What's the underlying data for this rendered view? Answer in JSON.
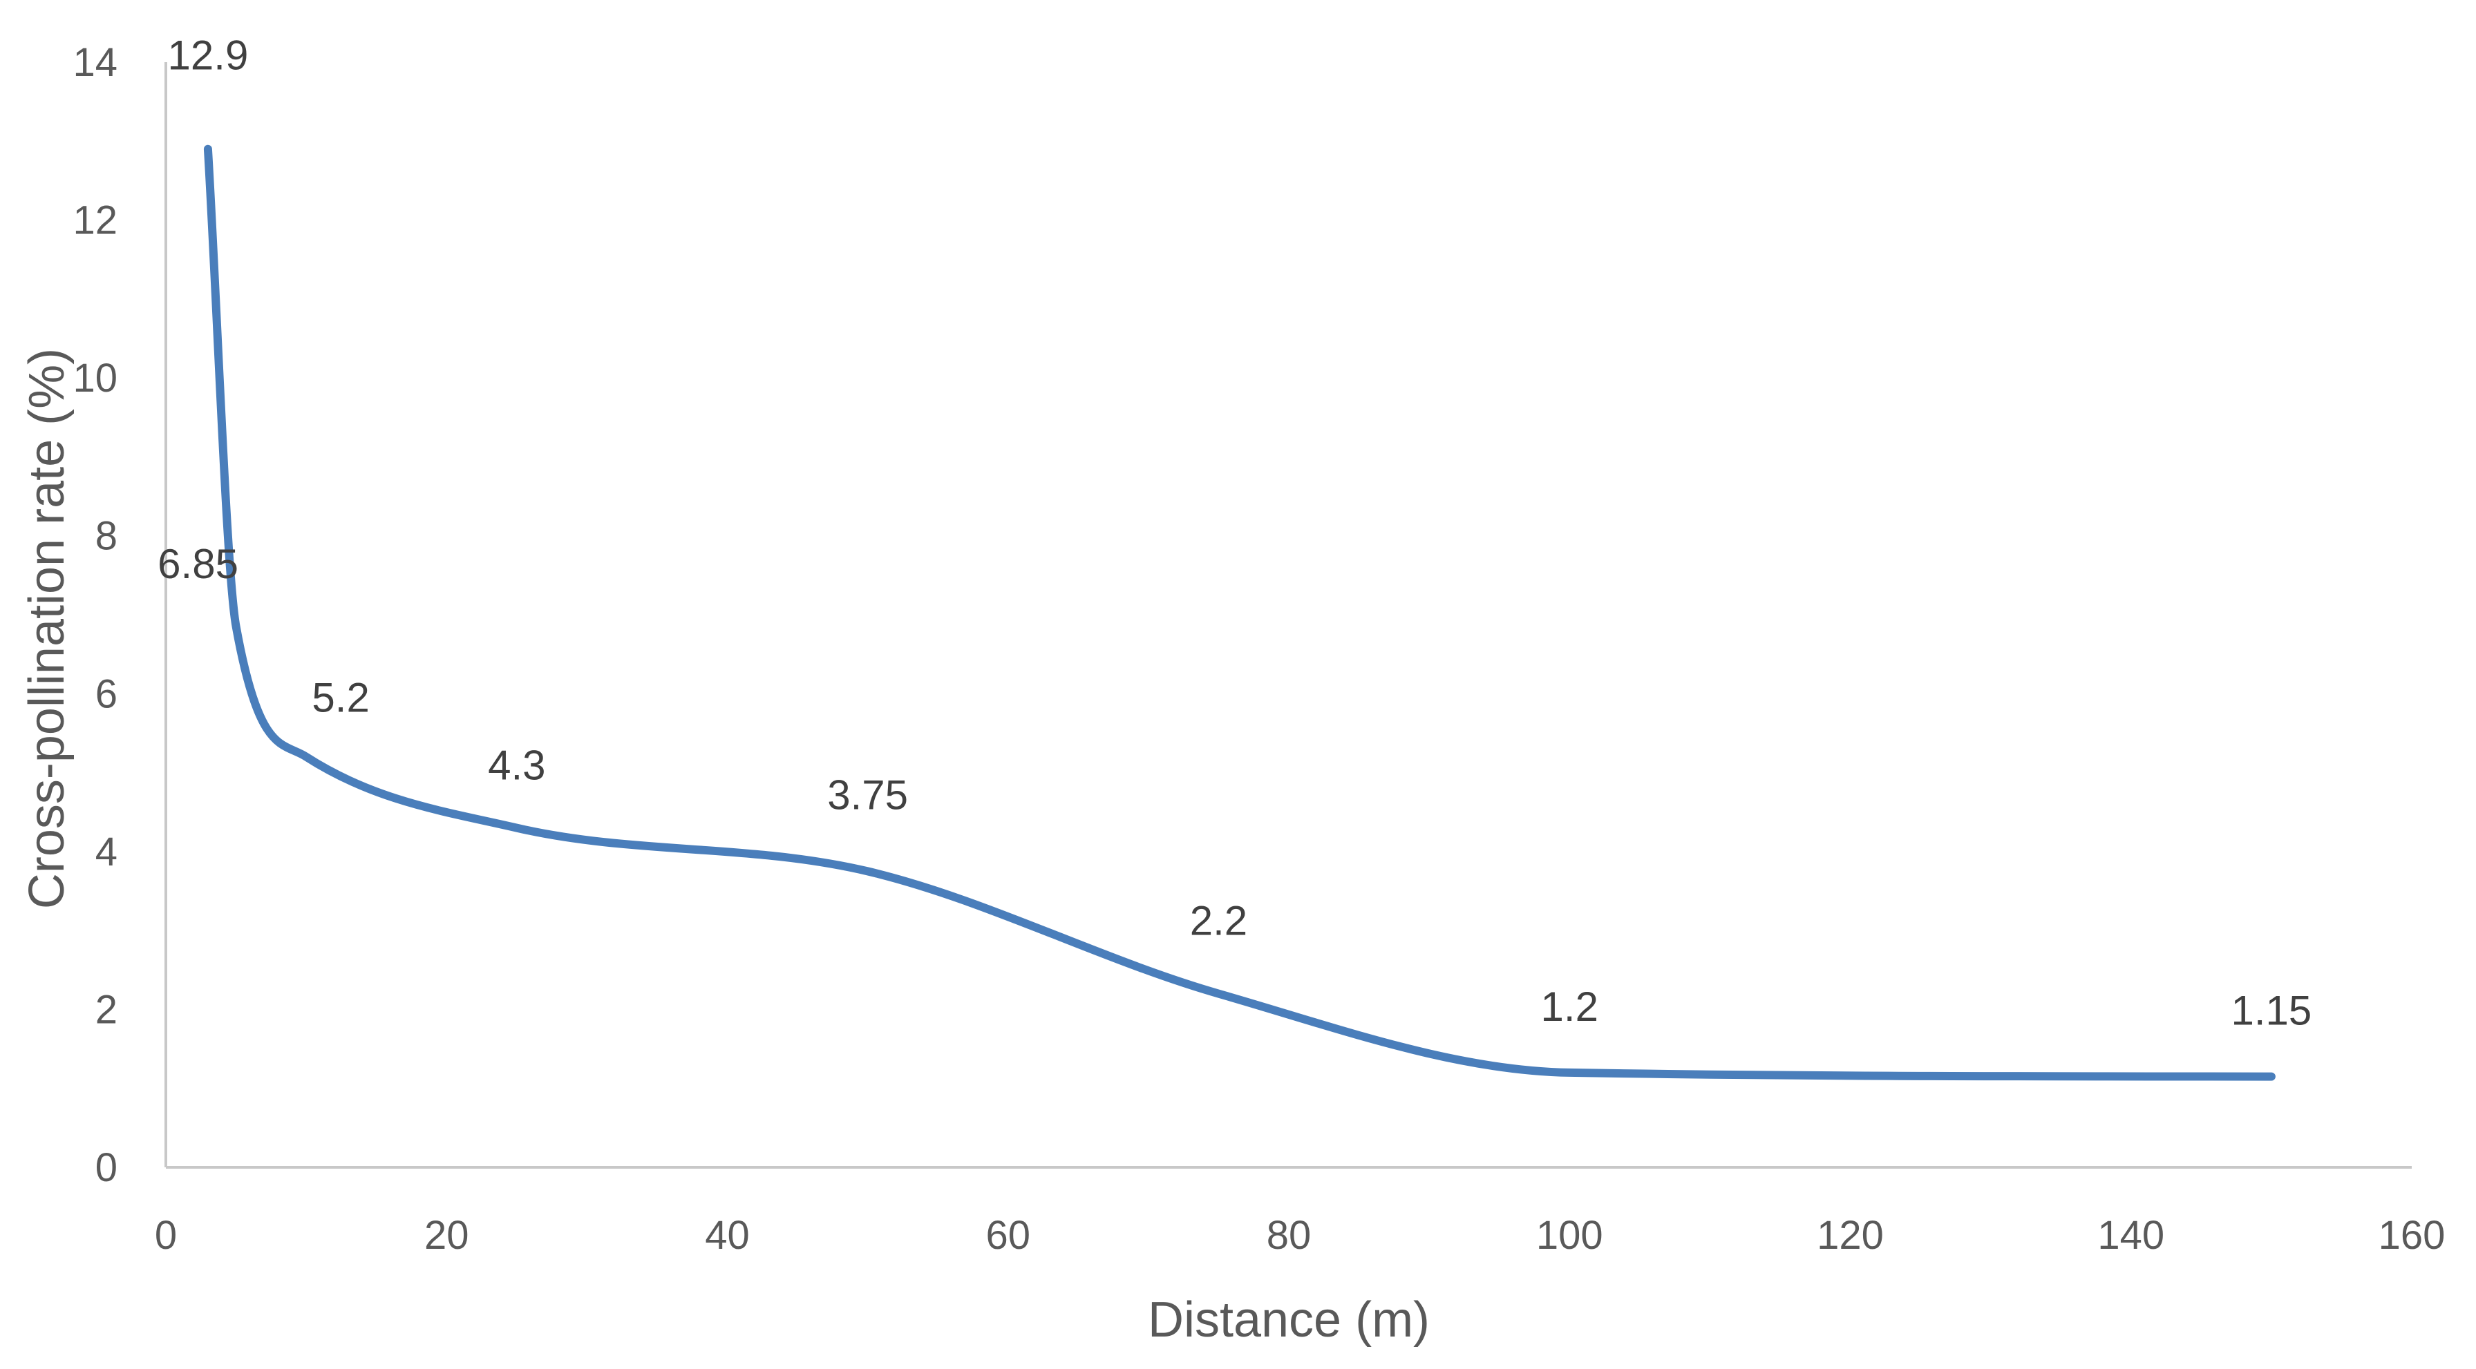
{
  "chart_data": {
    "type": "line",
    "smooth": true,
    "title": "",
    "xlabel": "Distance (m)",
    "ylabel": "Cross-pollination rate (%)",
    "xlim": [
      0,
      160
    ],
    "ylim": [
      0,
      14
    ],
    "x_ticks": [
      0,
      20,
      40,
      60,
      80,
      100,
      120,
      140,
      160
    ],
    "y_ticks": [
      0,
      2,
      4,
      6,
      8,
      10,
      12,
      14
    ],
    "grid": false,
    "legend": "none",
    "series": [
      {
        "color": "#4a7ebb",
        "x": [
          3,
          5,
          10,
          25,
          50,
          75,
          100,
          150
        ],
        "y": [
          12.9,
          6.85,
          5.2,
          4.3,
          3.75,
          2.2,
          1.2,
          1.15
        ],
        "labels": [
          "12.9",
          "6.85",
          "5.2",
          "4.3",
          "3.75",
          "2.2",
          "1.2",
          "1.15"
        ]
      }
    ]
  }
}
